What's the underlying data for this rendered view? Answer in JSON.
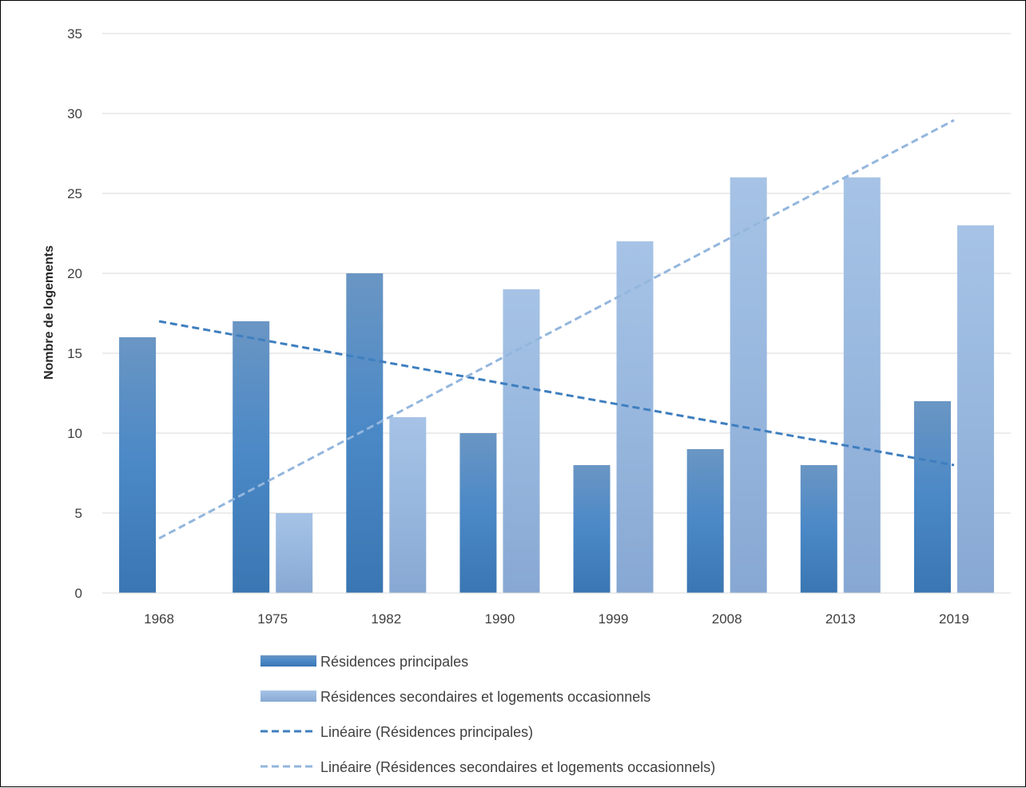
{
  "chart_data": {
    "type": "bar",
    "categories": [
      "1968",
      "1975",
      "1982",
      "1990",
      "1999",
      "2008",
      "2013",
      "2019"
    ],
    "series": [
      {
        "name": "Résidences principales",
        "values": [
          16,
          17,
          20,
          10,
          8,
          9,
          8,
          12
        ],
        "color": "#3f7fbf"
      },
      {
        "name": "Résidences secondaires et logements occasionnels",
        "values": [
          0,
          5,
          11,
          19,
          22,
          26,
          26,
          23
        ],
        "color": "#93b6dd"
      }
    ],
    "trendlines": [
      {
        "name": "Linéaire (Résidences principales)",
        "of_series": 0,
        "type": "linear",
        "color": "#3f7fbf"
      },
      {
        "name": "Linéaire (Résidences secondaires et logements occasionnels)",
        "of_series": 1,
        "type": "linear",
        "color": "#93b6dd"
      }
    ],
    "xlabel": "",
    "ylabel": "Nombre de logements",
    "ylim": [
      0,
      35
    ],
    "yticks": [
      "0",
      "5",
      "10",
      "15",
      "20",
      "25",
      "30",
      "35"
    ],
    "grid": true,
    "legend_position": "bottom"
  }
}
